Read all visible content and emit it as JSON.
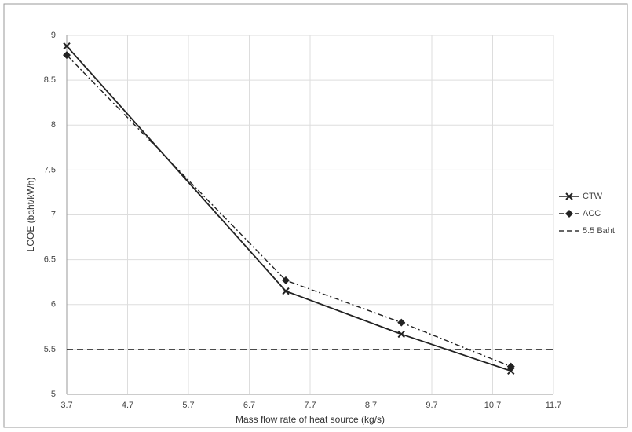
{
  "chart_data": {
    "type": "line",
    "x_label": "Mass flow rate of heat source (kg/s)",
    "y_label": "LCOE (baht/kWh)",
    "xlim": [
      3.7,
      11.7
    ],
    "xticks": [
      3.7,
      4.7,
      5.7,
      6.7,
      7.7,
      8.7,
      9.7,
      10.7,
      11.7
    ],
    "ylim": [
      5,
      9
    ],
    "yticks": [
      5,
      5.5,
      6,
      6.5,
      7,
      7.5,
      8,
      8.5,
      9
    ],
    "grid": true,
    "legend": "right",
    "series": [
      {
        "name": "CTW",
        "color": "#222222",
        "dash": "solid",
        "marker": "x",
        "x": [
          3.7,
          7.3,
          9.2,
          11.0
        ],
        "values": [
          8.88,
          6.15,
          5.67,
          5.26
        ]
      },
      {
        "name": "ACC",
        "color": "#222222",
        "dash": "dashdot",
        "marker": "diamond",
        "x": [
          3.7,
          7.3,
          9.2,
          11.0
        ],
        "values": [
          8.78,
          6.27,
          5.8,
          5.31
        ]
      },
      {
        "name": "5.5 Baht",
        "color": "#333333",
        "dash": "dashed",
        "marker": "none",
        "x": [
          3.7,
          11.7
        ],
        "values": [
          5.5,
          5.5
        ]
      }
    ]
  }
}
